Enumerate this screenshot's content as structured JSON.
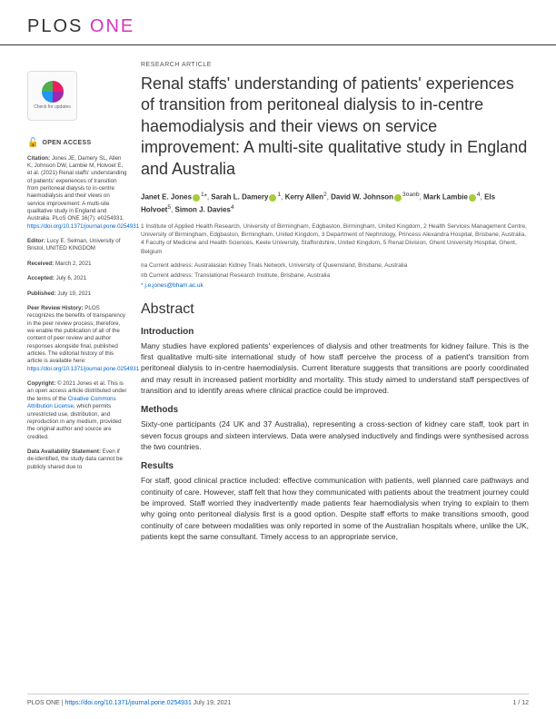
{
  "journal": {
    "plos": "PLOS",
    "one": "ONE"
  },
  "article_type": "RESEARCH ARTICLE",
  "title": "Renal staffs' understanding of patients' experiences of transition from peritoneal dialysis to in-centre haemodialysis and their views on service improvement: A multi-site qualitative study in England and Australia",
  "authors": "Janet E. Jones¹*, Sarah L. Damery¹, Kerry Allen², David W. Johnson³ᵃᵇ, Mark Lambie⁴, Els Holvoet⁵, Simon J. Davies⁴",
  "affiliations": "1 Institute of Applied Health Research, University of Birmingham, Edgbaston, Birmingham, United Kingdom, 2 Health Services Management Centre, University of Birmingham, Edgbaston, Birmingham, United Kingdom, 3 Department of Nephrology, Princess Alexandra Hospital, Brisbane, Australia, 4 Faculty of Medicine and Health Sciences, Keele University, Staffordshire, United Kingdom, 5 Renal Division, Ghent University Hospital, Ghent, Belgium",
  "curr_a": "¤a Current address: Australasian Kidney Trials Network, University of Queensland, Brisbane, Australia",
  "curr_b": "¤b Current address: Translational Research Institute, Brisbane, Australia",
  "corresponding": "* j.e.jones@bham.ac.uk",
  "check_updates": "Check for updates",
  "open_access": "OPEN ACCESS",
  "citation_label": "Citation:",
  "citation": " Jones JE, Damery SL, Allen K, Johnson DW, Lambie M, Holvoet E, et al. (2021) Renal staffs' understanding of patients' experiences of transition from peritoneal dialysis to in-centre haemodialysis and their views on service improvement: A multi-site qualitative study in England and Australia. PLoS ONE 16(7): e0254931. ",
  "citation_doi": "https://doi.org/10.1371/journal.pone.0254931",
  "editor_label": "Editor:",
  "editor": " Lucy E. Selman, University of Bristol, UNITED KINGDOM",
  "received_label": "Received:",
  "received": " March 2, 2021",
  "accepted_label": "Accepted:",
  "accepted": " July 6, 2021",
  "published_label": "Published:",
  "published": " July 19, 2021",
  "peer_label": "Peer Review History:",
  "peer": " PLOS recognizes the benefits of transparency in the peer review process; therefore, we enable the publication of all of the content of peer review and author responses alongside final, published articles. The editorial history of this article is available here: ",
  "peer_link": "https://doi.org/10.1371/journal.pone.0254931",
  "copyright_label": "Copyright:",
  "copyright": " © 2021 Jones et al. This is an open access article distributed under the terms of the ",
  "cc_link": "Creative Commons Attribution License",
  "copyright2": ", which permits unrestricted use, distribution, and reproduction in any medium, provided the original author and source are credited.",
  "data_label": "Data Availability Statement:",
  "data": " Even if de-identified, the study data cannot be publicly shared due to",
  "abstract": {
    "heading": "Abstract",
    "intro_h": "Introduction",
    "intro": "Many studies have explored patients' experiences of dialysis and other treatments for kidney failure. This is the first qualitative multi-site international study of how staff perceive the process of a patient's transition from peritoneal dialysis to in-centre haemodialysis. Current literature suggests that transitions are poorly coordinated and may result in increased patient morbidity and mortality. This study aimed to understand staff perspectives of transition and to identify areas where clinical practice could be improved.",
    "methods_h": "Methods",
    "methods": "Sixty-one participants (24 UK and 37 Australia), representing a cross-section of kidney care staff, took part in seven focus groups and sixteen interviews. Data were analysed inductively and findings were synthesised across the two countries.",
    "results_h": "Results",
    "results": "For staff, good clinical practice included: effective communication with patients, well planned care pathways and continuity of care. However, staff felt that how they communicated with patients about the treatment journey could be improved. Staff worried they inadvertently made patients fear haemodialysis when trying to explain to them why going onto peritoneal dialysis first is a good option. Despite staff efforts to make transitions smooth, good continuity of care between modalities was only reported in some of the Australian hospitals where, unlike the UK, patients kept the same consultant. Timely access to an appropriate service,"
  },
  "footer": {
    "left_prefix": "PLOS ONE | ",
    "left_link": "https://doi.org/10.1371/journal.pone.0254931",
    "left_date": "   July 19, 2021",
    "right": "1 / 12"
  },
  "colors": {
    "accent": "#d831c5",
    "link": "#0066cc",
    "text": "#333333",
    "muted": "#555555",
    "orcid": "#a6ce39"
  }
}
